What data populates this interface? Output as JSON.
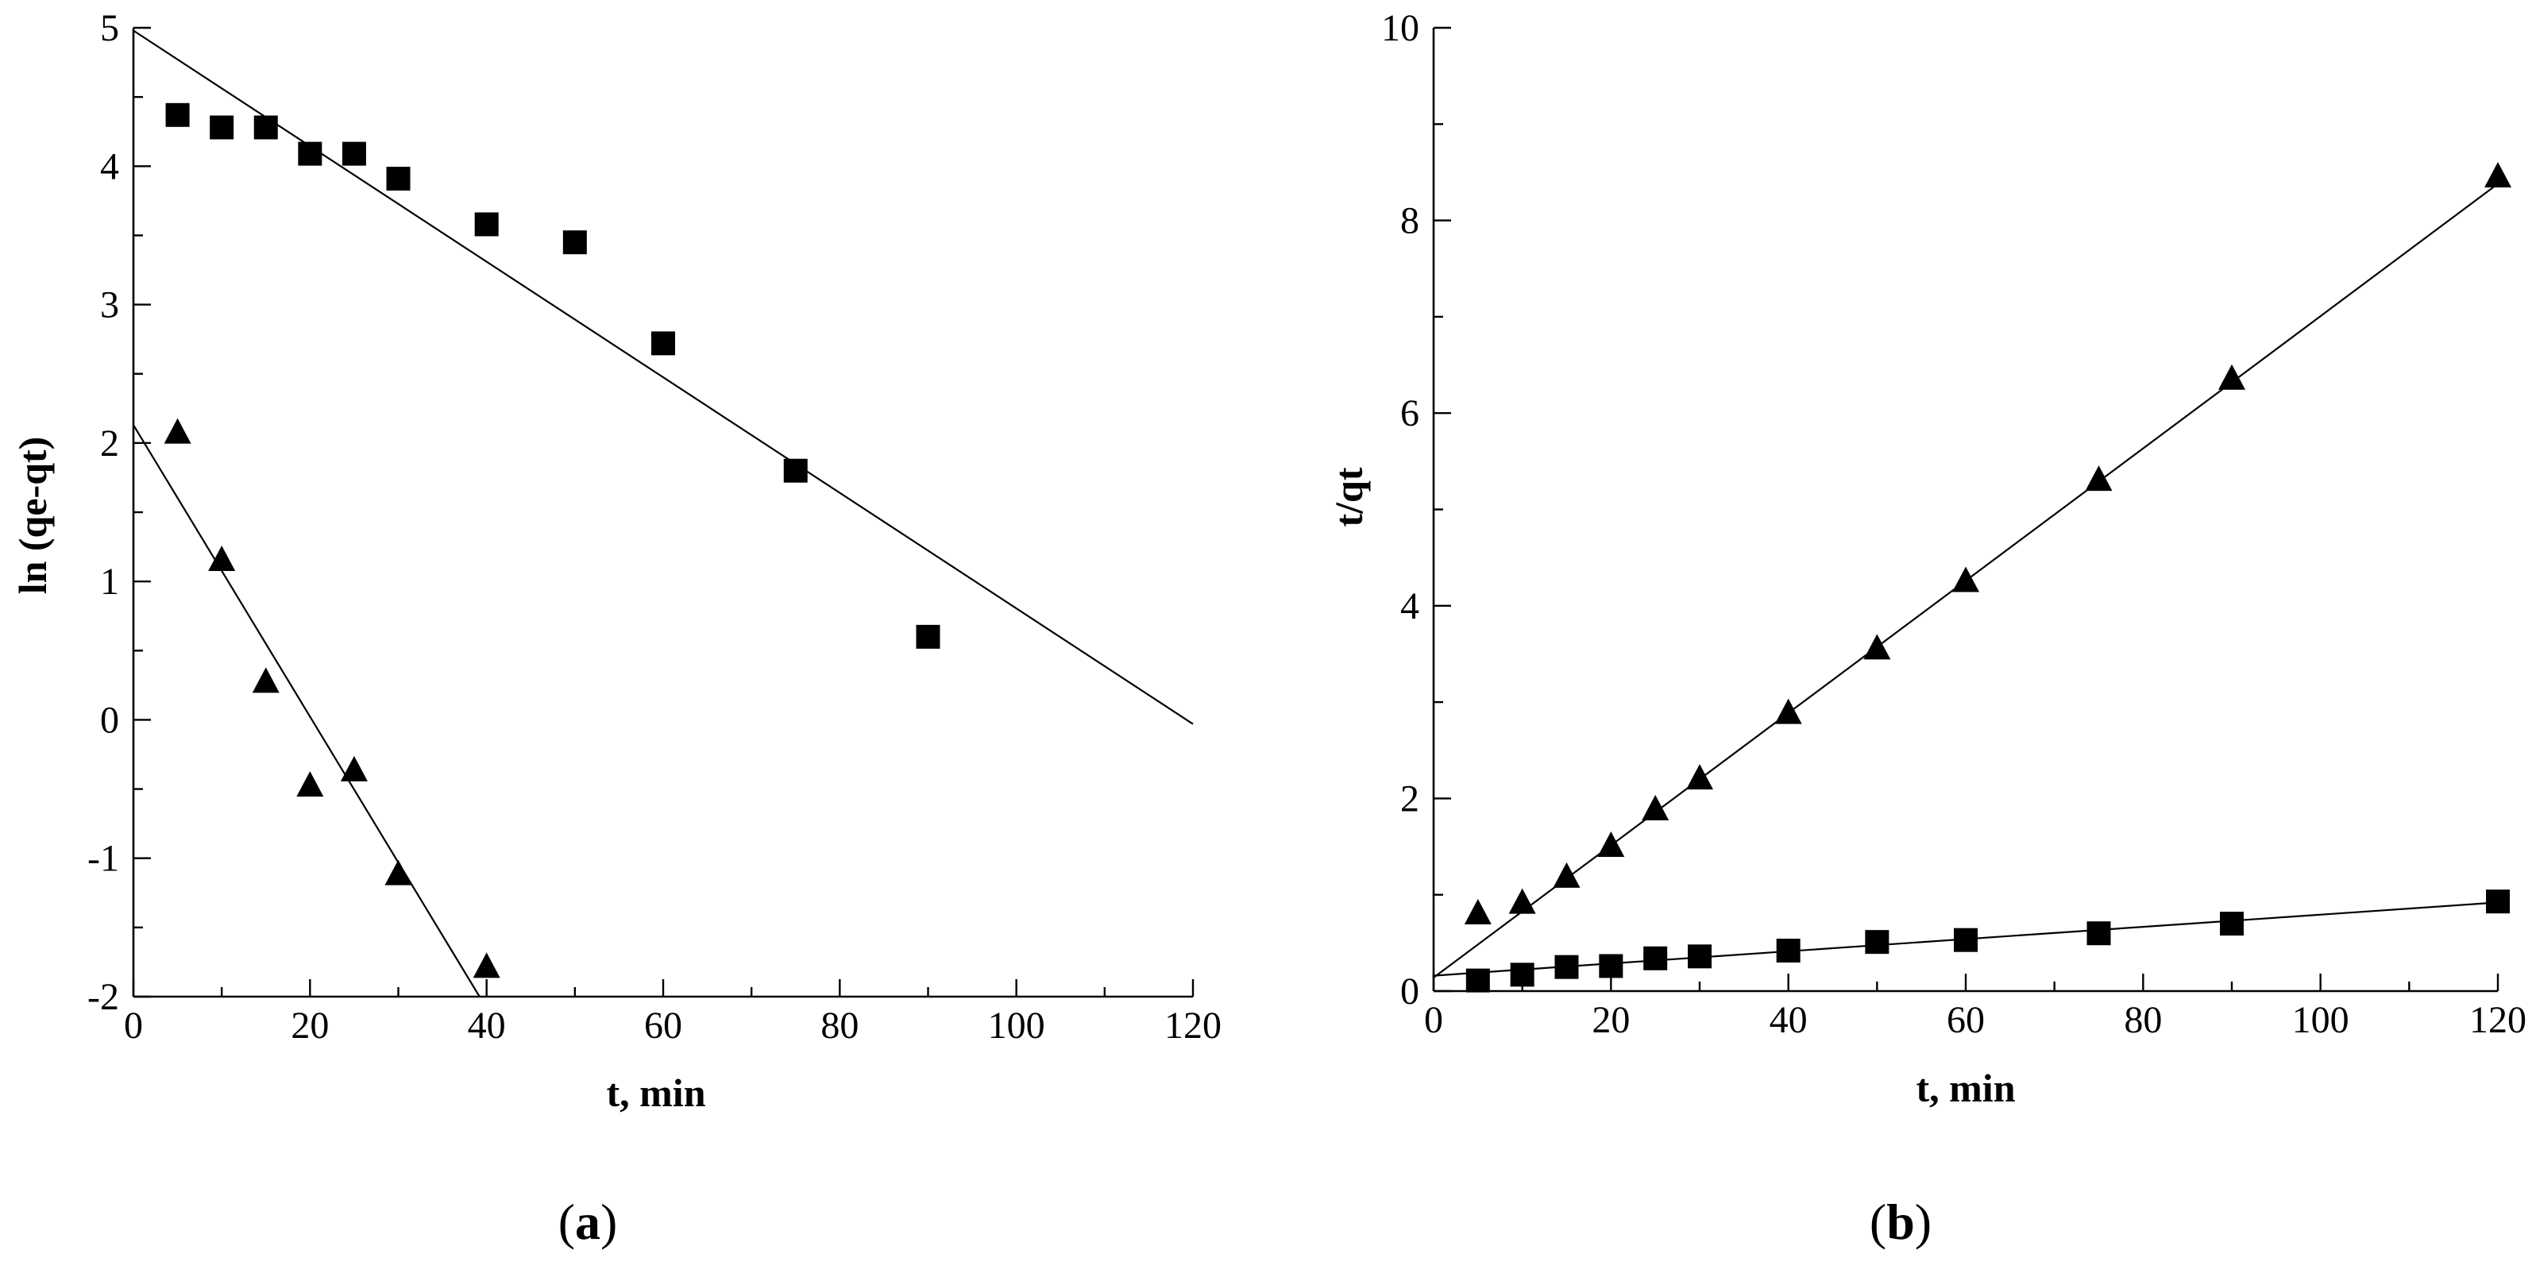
{
  "chart_data": [
    {
      "type": "scatter",
      "panel": "a",
      "panel_label": "a",
      "xlabel": "t, min",
      "ylabel": "ln (qe-qt)",
      "xlim": [
        0,
        120
      ],
      "ylim": [
        -2,
        5
      ],
      "x_major_ticks": [
        0,
        20,
        40,
        60,
        80,
        100,
        120
      ],
      "x_tick_labels": [
        "0",
        "20",
        "40",
        "60",
        "80",
        "100",
        "120"
      ],
      "y_major_ticks": [
        -2,
        -1,
        0,
        1,
        2,
        3,
        4,
        5
      ],
      "y_tick_labels": [
        "-2",
        "-1",
        "0",
        "1",
        "2",
        "3",
        "4",
        "5"
      ],
      "x_minor_step": 10,
      "y_minor_step": 0.5,
      "grid": false,
      "series": [
        {
          "name": "squares",
          "marker": "square",
          "x": [
            5,
            10,
            15,
            20,
            25,
            30,
            40,
            50,
            60,
            75,
            90
          ],
          "y": [
            4.37,
            4.28,
            4.28,
            4.09,
            4.09,
            3.91,
            3.58,
            3.45,
            2.72,
            1.8,
            0.6
          ],
          "fit": {
            "x": [
              0,
              120
            ],
            "y": [
              4.98,
              -0.03
            ]
          }
        },
        {
          "name": "triangles",
          "marker": "triangle",
          "x": [
            5,
            10,
            15,
            20,
            25,
            30,
            40
          ],
          "y": [
            2.07,
            1.15,
            0.27,
            -0.48,
            -0.37,
            -1.12,
            -1.79
          ],
          "fit": {
            "x": [
              0,
              39.2
            ],
            "y": [
              2.13,
              -2.0
            ]
          }
        }
      ]
    },
    {
      "type": "scatter",
      "panel": "b",
      "panel_label": "b",
      "xlabel": "t, min",
      "ylabel": "t/qt",
      "xlim": [
        0,
        120
      ],
      "ylim": [
        0,
        10
      ],
      "x_major_ticks": [
        0,
        20,
        40,
        60,
        80,
        100,
        120
      ],
      "x_tick_labels": [
        "0",
        "20",
        "40",
        "60",
        "80",
        "100",
        "120"
      ],
      "y_major_ticks": [
        0,
        2,
        4,
        6,
        8,
        10
      ],
      "y_tick_labels": [
        "0",
        "2",
        "4",
        "6",
        "8",
        "10"
      ],
      "x_minor_step": 10,
      "y_minor_step": 1,
      "grid": false,
      "series": [
        {
          "name": "triangles",
          "marker": "triangle",
          "x": [
            5,
            10,
            15,
            20,
            25,
            30,
            40,
            50,
            60,
            75,
            90,
            120
          ],
          "y": [
            0.8,
            0.91,
            1.18,
            1.5,
            1.88,
            2.2,
            2.88,
            3.55,
            4.25,
            5.3,
            6.35,
            8.45
          ],
          "fit": {
            "x": [
              0,
              120
            ],
            "y": [
              0.14,
              8.38
            ]
          }
        },
        {
          "name": "squares",
          "marker": "square",
          "x": [
            5,
            10,
            15,
            20,
            25,
            30,
            40,
            50,
            60,
            75,
            90,
            120
          ],
          "y": [
            0.11,
            0.17,
            0.25,
            0.26,
            0.34,
            0.36,
            0.42,
            0.51,
            0.53,
            0.6,
            0.7,
            0.93
          ],
          "fit": {
            "x": [
              0,
              120
            ],
            "y": [
              0.16,
              0.92
            ]
          }
        }
      ]
    }
  ]
}
